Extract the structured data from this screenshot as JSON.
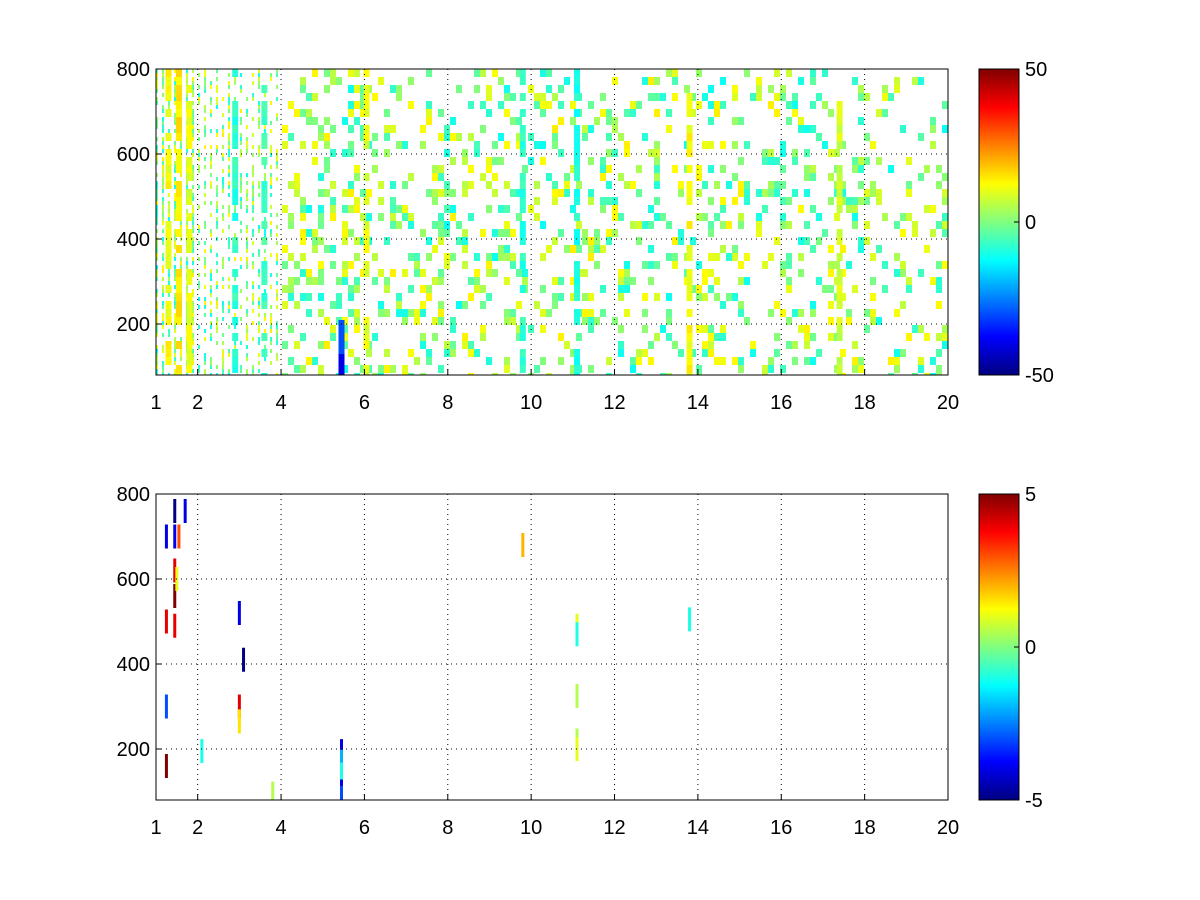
{
  "chart_data": [
    {
      "type": "heatmap",
      "title": "",
      "xlabel": "",
      "ylabel": "",
      "xlim": [
        1,
        20
      ],
      "ylim": [
        80,
        800
      ],
      "xticks": [
        1,
        2,
        4,
        6,
        8,
        10,
        12,
        14,
        16,
        18,
        20
      ],
      "xtick_labels": [
        "1",
        "2",
        "4",
        "6",
        "8",
        "10",
        "12",
        "14",
        "16",
        "18",
        "20"
      ],
      "yticks": [
        200,
        400,
        600,
        800
      ],
      "ytick_labels": [
        "200",
        "400",
        "600",
        "800"
      ],
      "grid": true,
      "colormap": "jet",
      "clim": [
        -50,
        50
      ],
      "colorbar_ticks": [
        -50,
        0,
        50
      ],
      "colorbar_labels": [
        "-50",
        "0",
        "50"
      ],
      "description_of_values": "dense sparse field of values mostly between -15 and 15 across whole domain; stronger vertical bands near x=6, 9.8, 11.1, 13.8, 17.4",
      "bands": [
        {
          "x": 1.3,
          "value": 12
        },
        {
          "x": 1.55,
          "value": 14
        },
        {
          "x": 1.8,
          "value": 10
        },
        {
          "x": 2.9,
          "value": -8
        },
        {
          "x": 3.6,
          "value": -6
        },
        {
          "x": 6.05,
          "value": 10
        },
        {
          "x": 9.8,
          "value": -8
        },
        {
          "x": 11.1,
          "value": -10
        },
        {
          "x": 13.8,
          "value": 12
        },
        {
          "x": 17.4,
          "value": 8
        }
      ],
      "points": [
        {
          "x": 5.45,
          "y": 200,
          "value": -30
        },
        {
          "x": 5.45,
          "y": 120,
          "value": -40
        }
      ]
    },
    {
      "type": "heatmap",
      "title": "",
      "xlabel": "",
      "ylabel": "",
      "xlim": [
        1,
        20
      ],
      "ylim": [
        80,
        800
      ],
      "xticks": [
        1,
        2,
        4,
        6,
        8,
        10,
        12,
        14,
        16,
        18,
        20
      ],
      "xtick_labels": [
        "1",
        "2",
        "4",
        "6",
        "8",
        "10",
        "12",
        "14",
        "16",
        "18",
        "20"
      ],
      "yticks": [
        200,
        400,
        600,
        800
      ],
      "ytick_labels": [
        "200",
        "400",
        "600",
        "800"
      ],
      "grid": true,
      "colormap": "jet",
      "clim": [
        -5,
        5
      ],
      "colorbar_ticks": [
        -5,
        0,
        5
      ],
      "colorbar_labels": [
        "-5",
        "0",
        "5"
      ],
      "points": [
        {
          "x": 1.25,
          "y": 700,
          "value": -4
        },
        {
          "x": 1.25,
          "y": 500,
          "value": 4
        },
        {
          "x": 1.25,
          "y": 300,
          "value": -3
        },
        {
          "x": 1.25,
          "y": 160,
          "value": 5
        },
        {
          "x": 1.45,
          "y": 760,
          "value": -5
        },
        {
          "x": 1.45,
          "y": 700,
          "value": -4
        },
        {
          "x": 1.45,
          "y": 620,
          "value": 4
        },
        {
          "x": 1.45,
          "y": 560,
          "value": 5
        },
        {
          "x": 1.45,
          "y": 490,
          "value": 4
        },
        {
          "x": 1.55,
          "y": 700,
          "value": 3
        },
        {
          "x": 1.5,
          "y": 600,
          "value": 1
        },
        {
          "x": 1.7,
          "y": 760,
          "value": -4
        },
        {
          "x": 3.0,
          "y": 520,
          "value": -4
        },
        {
          "x": 3.0,
          "y": 300,
          "value": 4
        },
        {
          "x": 3.0,
          "y": 265,
          "value": 1.5
        },
        {
          "x": 3.1,
          "y": 410,
          "value": -5
        },
        {
          "x": 2.1,
          "y": 195,
          "value": -1
        },
        {
          "x": 3.8,
          "y": 95,
          "value": 0.5
        },
        {
          "x": 5.45,
          "y": 195,
          "value": -4
        },
        {
          "x": 5.45,
          "y": 170,
          "value": -2
        },
        {
          "x": 5.45,
          "y": 140,
          "value": -1
        },
        {
          "x": 5.45,
          "y": 100,
          "value": -4
        },
        {
          "x": 5.45,
          "y": 85,
          "value": -3
        },
        {
          "x": 11.1,
          "y": 490,
          "value": 1
        },
        {
          "x": 11.1,
          "y": 470,
          "value": -1
        },
        {
          "x": 11.1,
          "y": 325,
          "value": 0.5
        },
        {
          "x": 11.1,
          "y": 220,
          "value": 0.5
        },
        {
          "x": 11.1,
          "y": 200,
          "value": 1
        },
        {
          "x": 13.8,
          "y": 505,
          "value": -1
        },
        {
          "x": 9.8,
          "y": 680,
          "value": 2
        }
      ]
    }
  ]
}
